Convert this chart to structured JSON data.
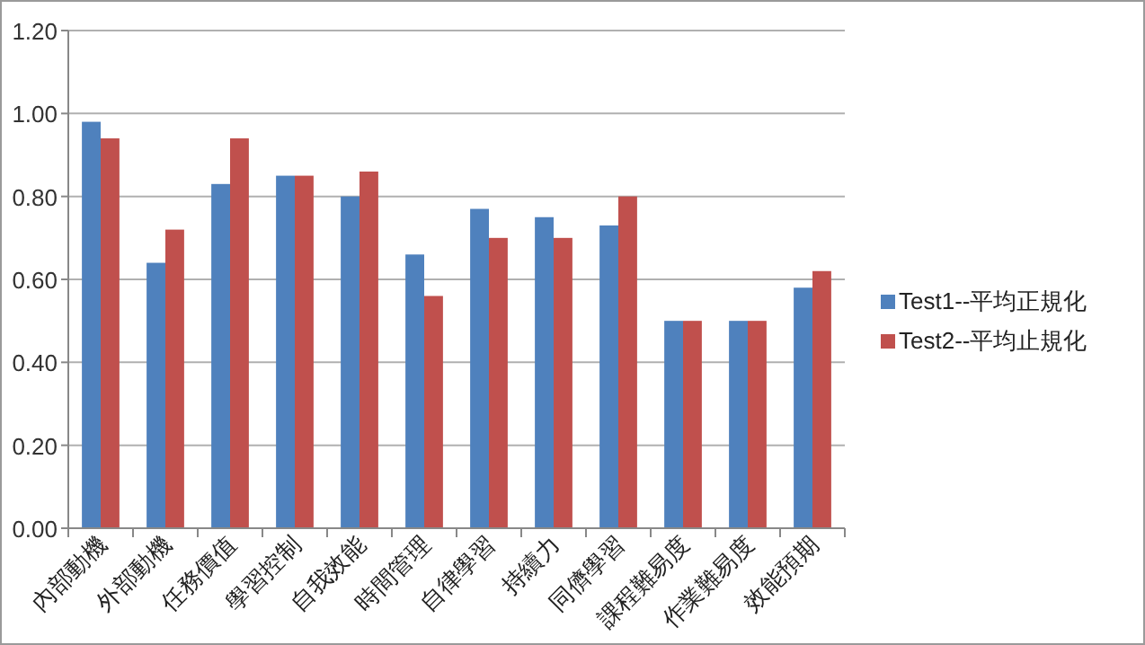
{
  "chart_data": {
    "type": "bar",
    "categories": [
      "內部動機",
      "外部動機",
      "任務價值",
      "學習控制",
      "自我效能",
      "時間管理",
      "自律學習",
      "持續力",
      "同儕學習",
      "課程難易度",
      "作業難易度",
      "效能預期"
    ],
    "series": [
      {
        "name": "Test1--平均正規化",
        "color": "#4f81bd",
        "values": [
          0.98,
          0.64,
          0.83,
          0.85,
          0.8,
          0.66,
          0.77,
          0.75,
          0.73,
          0.5,
          0.5,
          0.58
        ]
      },
      {
        "name": "Test2--平均止規化",
        "color": "#c0504d",
        "values": [
          0.94,
          0.72,
          0.94,
          0.85,
          0.86,
          0.56,
          0.7,
          0.7,
          0.8,
          0.5,
          0.5,
          0.62
        ]
      }
    ],
    "ylim": [
      0,
      1.2
    ],
    "yticks": [
      {
        "value": 0,
        "label": "0.00"
      },
      {
        "value": 0.2,
        "label": "0.20"
      },
      {
        "value": 0.4,
        "label": "0.40"
      },
      {
        "value": 0.6,
        "label": "0.60"
      },
      {
        "value": 0.8,
        "label": "0.80"
      },
      {
        "value": 1,
        "label": "1.00"
      },
      {
        "value": 1.2,
        "label": "1.20"
      }
    ],
    "grid": "y",
    "legend": "right"
  }
}
